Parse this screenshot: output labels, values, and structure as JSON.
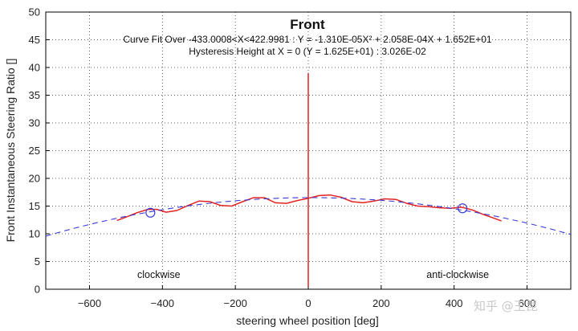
{
  "chart_data": {
    "type": "line",
    "title": "Front",
    "annotation_line1": "Curve Fit Over -433.0008<X<422.9981 : Y = -1.310E-05X² + 2.058E-04X + 1.652E+01",
    "annotation_line2": "Hysteresis Height at X = 0 (Y = 1.625E+01) : 3.026E-02",
    "xlabel": "steering wheel position [deg]",
    "ylabel": "Front Instantaneous Steering Ratio []",
    "xlim": [
      -720,
      720
    ],
    "ylim": [
      0,
      50
    ],
    "xticks": [
      -600,
      -400,
      -200,
      0,
      200,
      400,
      600
    ],
    "xtick_labels": [
      "−600",
      "−400",
      "−200",
      "0",
      "200",
      "400",
      "600"
    ],
    "yticks": [
      0,
      5,
      10,
      15,
      20,
      25,
      30,
      35,
      40,
      45,
      50
    ],
    "grid": true,
    "region_labels": [
      {
        "text": "clockwise",
        "x": -410,
        "y": 2
      },
      {
        "text": "anti-clockwise",
        "x": 410,
        "y": 2
      }
    ],
    "watermark": "知乎 @王昆",
    "series": [
      {
        "color": "#e32222",
        "style": "solid",
        "x": [
          -525,
          -500,
          -470,
          -440,
          -415,
          -390,
          -360,
          -330,
          -300,
          -270,
          -240,
          -210,
          -180,
          -150,
          -120,
          -90,
          -60,
          -30,
          0,
          30,
          60,
          90,
          120,
          150,
          180,
          210,
          240,
          270,
          300,
          330,
          360,
          390,
          420,
          450,
          480,
          510,
          530
        ],
        "y": [
          12.4,
          13.0,
          13.8,
          14.4,
          14.4,
          13.9,
          14.2,
          15.1,
          15.9,
          15.8,
          15.1,
          15.0,
          15.8,
          16.5,
          16.5,
          15.6,
          15.5,
          16.0,
          16.4,
          16.9,
          17.0,
          16.6,
          15.8,
          15.6,
          15.9,
          16.3,
          16.2,
          15.5,
          15.0,
          14.9,
          14.7,
          14.6,
          14.8,
          14.3,
          13.5,
          12.8,
          12.3
        ]
      },
      {
        "color": "#e32222",
        "style": "solid",
        "x": [
          0,
          0
        ],
        "y": [
          0.5,
          39
        ]
      },
      {
        "name": "Curve fit",
        "color": "#3a3ad6",
        "style": "dashed",
        "fit": {
          "a": -1.31e-05,
          "b": 0.0002058,
          "c": 16.52
        },
        "x_range": [
          -720,
          720
        ]
      }
    ],
    "markers": [
      {
        "x": -433,
        "y": 13.8,
        "color": "#3a3ad6"
      },
      {
        "x": 423,
        "y": 14.6,
        "color": "#3a3ad6"
      }
    ]
  }
}
